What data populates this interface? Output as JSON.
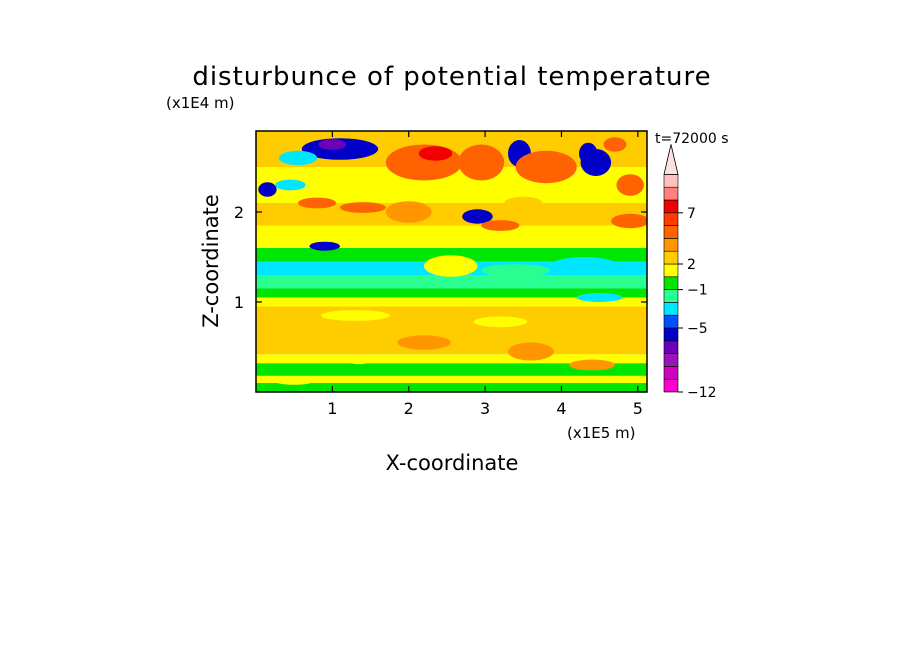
{
  "chart_data": {
    "type": "heatmap",
    "title": "disturbunce of potential temperature",
    "time_label": "t=72000 s",
    "xlabel": "X-coordinate",
    "ylabel": "Z-coordinate",
    "x_unit": "(x1E5 m)",
    "y_unit": "(x1E4 m)",
    "xlim": [
      0,
      5.12
    ],
    "ylim": [
      0,
      2.9
    ],
    "x_ticks": [
      1,
      2,
      3,
      4,
      5
    ],
    "y_ticks": [
      1,
      2
    ],
    "x_tick_labels": [
      "1",
      "2",
      "3",
      "4",
      "5"
    ],
    "y_tick_labels": [
      "1",
      "2"
    ],
    "colorbar": {
      "colors": [
        "#ff00cc",
        "#d000c0",
        "#9a14b8",
        "#6a00b8",
        "#0000c8",
        "#0050ff",
        "#00e6ff",
        "#28ff90",
        "#00e600",
        "#ffff00",
        "#ffcc00",
        "#ff9600",
        "#ff6200",
        "#ff3c00",
        "#f00000",
        "#ff8080",
        "#ffc0c0"
      ],
      "over_color": "#ffe0e0",
      "labels": [
        {
          "text": "-12",
          "level_index": 0
        },
        {
          "text": "-5",
          "level_index": 5
        },
        {
          "text": "-1",
          "level_index": 8
        },
        {
          "text": "2",
          "level_index": 10
        },
        {
          "text": "7",
          "level_index": 14
        }
      ]
    },
    "bands": [
      {
        "z0": 0.0,
        "z1": 0.1,
        "level": 8
      },
      {
        "z0": 0.1,
        "z1": 0.18,
        "level": 9
      },
      {
        "z0": 0.18,
        "z1": 0.32,
        "level": 8
      },
      {
        "z0": 0.32,
        "z1": 0.42,
        "level": 9
      },
      {
        "z0": 0.42,
        "z1": 0.95,
        "level": 10
      },
      {
        "z0": 0.95,
        "z1": 1.05,
        "level": 9
      },
      {
        "z0": 1.05,
        "z1": 1.15,
        "level": 8
      },
      {
        "z0": 1.15,
        "z1": 1.3,
        "level": 7
      },
      {
        "z0": 1.3,
        "z1": 1.45,
        "level": 6
      },
      {
        "z0": 1.45,
        "z1": 1.6,
        "level": 8
      },
      {
        "z0": 1.6,
        "z1": 1.85,
        "level": 9
      },
      {
        "z0": 1.85,
        "z1": 2.1,
        "level": 10
      },
      {
        "z0": 2.1,
        "z1": 2.5,
        "level": 9
      },
      {
        "z0": 2.5,
        "z1": 2.9,
        "level": 10
      }
    ],
    "features": [
      {
        "x": 1.1,
        "z": 2.7,
        "rx": 0.5,
        "rz": 0.12,
        "level": 4
      },
      {
        "x": 1.0,
        "z": 2.75,
        "rx": 0.18,
        "rz": 0.06,
        "level": 3
      },
      {
        "x": 0.55,
        "z": 2.6,
        "rx": 0.25,
        "rz": 0.08,
        "level": 6
      },
      {
        "x": 0.15,
        "z": 2.25,
        "rx": 0.12,
        "rz": 0.08,
        "level": 4
      },
      {
        "x": 0.45,
        "z": 2.3,
        "rx": 0.2,
        "rz": 0.06,
        "level": 6
      },
      {
        "x": 0.8,
        "z": 2.1,
        "rx": 0.25,
        "rz": 0.06,
        "level": 12
      },
      {
        "x": 1.4,
        "z": 2.05,
        "rx": 0.3,
        "rz": 0.06,
        "level": 12
      },
      {
        "x": 0.9,
        "z": 1.62,
        "rx": 0.2,
        "rz": 0.05,
        "level": 4
      },
      {
        "x": 2.2,
        "z": 2.55,
        "rx": 0.5,
        "rz": 0.2,
        "level": 12
      },
      {
        "x": 2.35,
        "z": 2.65,
        "rx": 0.22,
        "rz": 0.08,
        "level": 14
      },
      {
        "x": 2.0,
        "z": 2.0,
        "rx": 0.3,
        "rz": 0.12,
        "level": 11
      },
      {
        "x": 2.95,
        "z": 2.55,
        "rx": 0.3,
        "rz": 0.2,
        "level": 12
      },
      {
        "x": 3.45,
        "z": 2.65,
        "rx": 0.15,
        "rz": 0.15,
        "level": 4
      },
      {
        "x": 2.9,
        "z": 1.95,
        "rx": 0.2,
        "rz": 0.08,
        "level": 4
      },
      {
        "x": 3.8,
        "z": 2.5,
        "rx": 0.4,
        "rz": 0.18,
        "level": 12
      },
      {
        "x": 4.45,
        "z": 2.55,
        "rx": 0.2,
        "rz": 0.15,
        "level": 4
      },
      {
        "x": 4.35,
        "z": 2.65,
        "rx": 0.12,
        "rz": 0.12,
        "level": 4
      },
      {
        "x": 4.7,
        "z": 2.75,
        "rx": 0.15,
        "rz": 0.08,
        "level": 12
      },
      {
        "x": 4.9,
        "z": 2.3,
        "rx": 0.18,
        "rz": 0.12,
        "level": 12
      },
      {
        "x": 4.9,
        "z": 1.9,
        "rx": 0.25,
        "rz": 0.08,
        "level": 12
      },
      {
        "x": 3.5,
        "z": 2.1,
        "rx": 0.25,
        "rz": 0.07,
        "level": 10
      },
      {
        "x": 3.2,
        "z": 1.85,
        "rx": 0.25,
        "rz": 0.06,
        "level": 12
      },
      {
        "x": 2.55,
        "z": 1.4,
        "rx": 0.35,
        "rz": 0.12,
        "level": 9
      },
      {
        "x": 4.3,
        "z": 1.4,
        "rx": 0.45,
        "rz": 0.1,
        "level": 6
      },
      {
        "x": 3.4,
        "z": 1.35,
        "rx": 0.45,
        "rz": 0.07,
        "level": 7
      },
      {
        "x": 4.5,
        "z": 1.05,
        "rx": 0.3,
        "rz": 0.05,
        "level": 6
      },
      {
        "x": 1.3,
        "z": 0.85,
        "rx": 0.45,
        "rz": 0.06,
        "level": 9
      },
      {
        "x": 3.2,
        "z": 0.78,
        "rx": 0.35,
        "rz": 0.06,
        "level": 9
      },
      {
        "x": 2.2,
        "z": 0.55,
        "rx": 0.35,
        "rz": 0.08,
        "level": 11
      },
      {
        "x": 3.6,
        "z": 0.45,
        "rx": 0.3,
        "rz": 0.1,
        "level": 11
      },
      {
        "x": 4.4,
        "z": 0.3,
        "rx": 0.3,
        "rz": 0.06,
        "level": 11
      },
      {
        "x": 1.35,
        "z": 0.35,
        "rx": 0.15,
        "rz": 0.04,
        "level": 9
      },
      {
        "x": 0.5,
        "z": 0.12,
        "rx": 0.25,
        "rz": 0.04,
        "level": 9
      }
    ]
  }
}
